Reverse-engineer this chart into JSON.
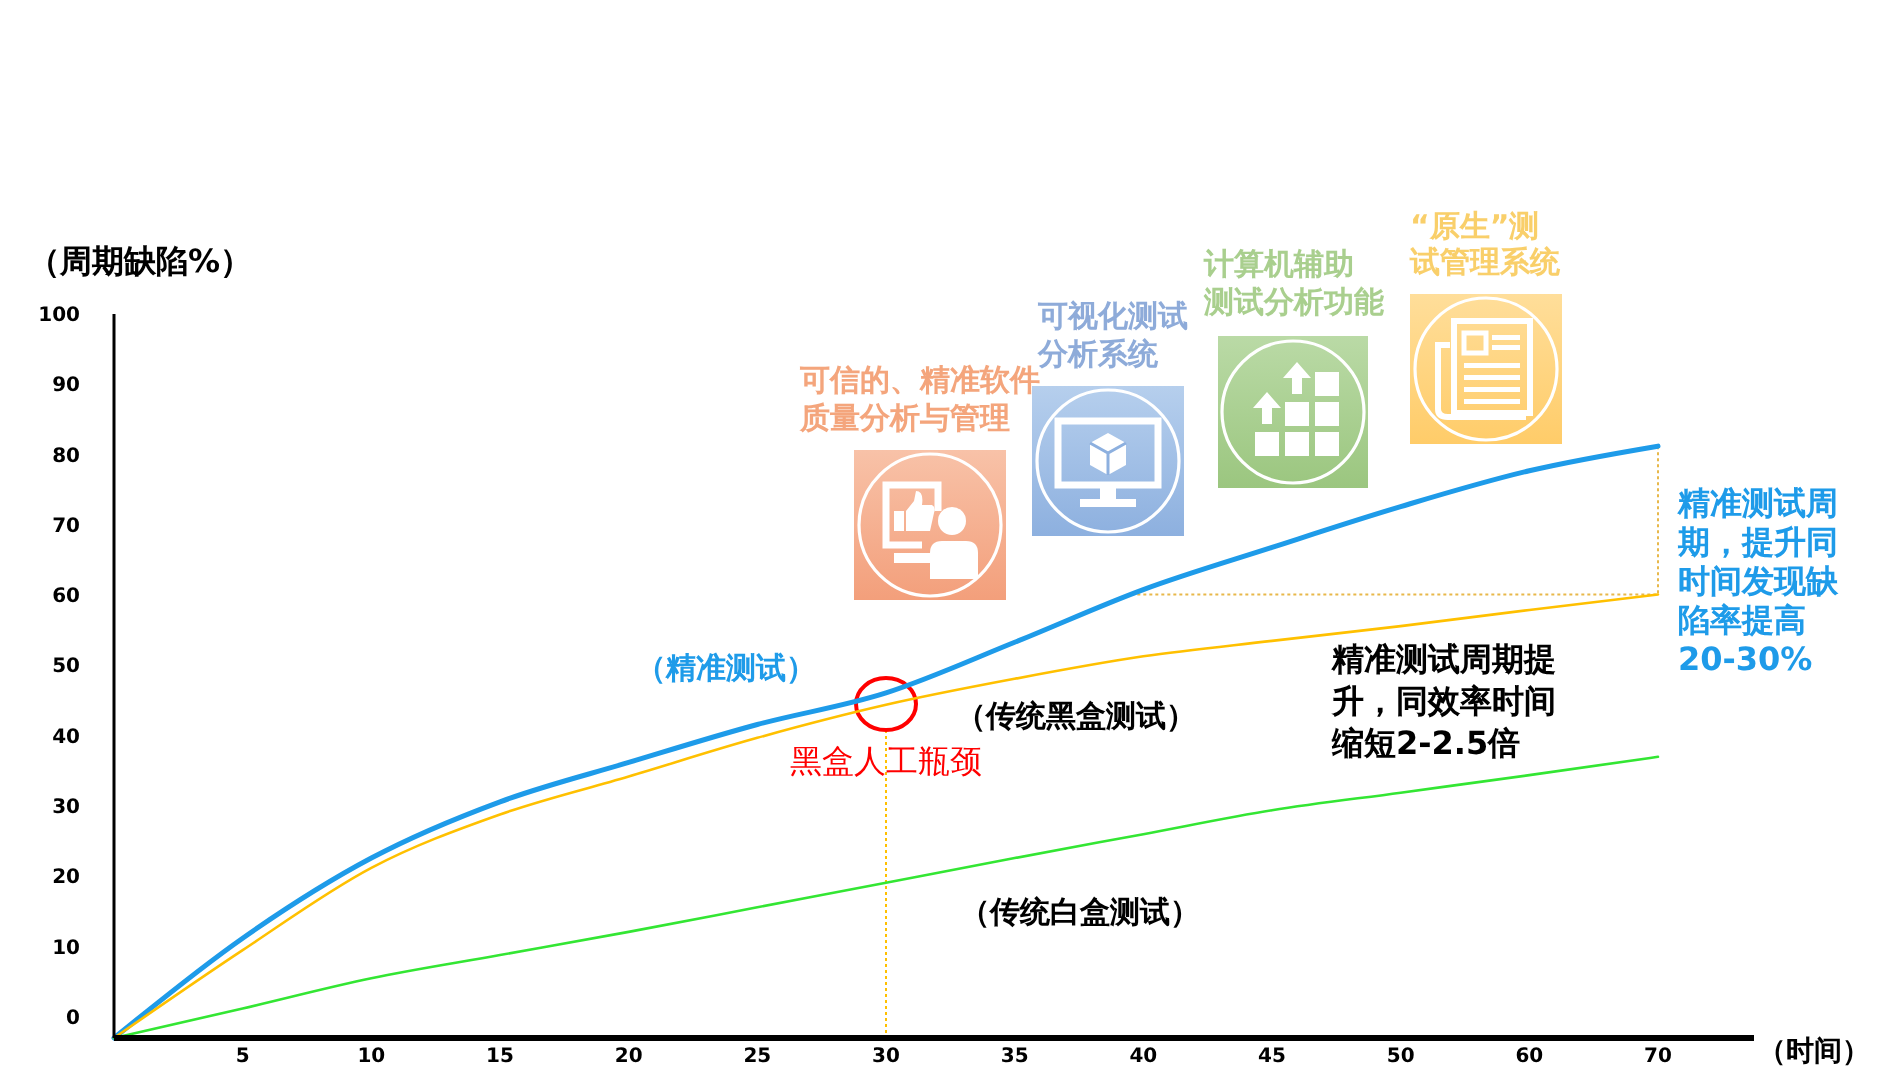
{
  "chart_data": {
    "type": "line",
    "xlabel": "（时间）",
    "ylabel": "（周期缺陷%）",
    "categories": [
      null,
      "5",
      "10",
      "15",
      "20",
      "25",
      "30",
      "35",
      "40",
      "45",
      "50",
      "60",
      "70"
    ],
    "ylim": [
      -3,
      100
    ],
    "yticks": [
      0,
      10,
      20,
      30,
      40,
      50,
      60,
      70,
      80,
      90,
      100
    ],
    "series": [
      {
        "name": "（精准测试）",
        "color": "#1e9be9",
        "values": [
          -3,
          11.2,
          22.6,
          30.6,
          36.2,
          41.6,
          46.1,
          53.3,
          60.8,
          66.8,
          72.6,
          77.7,
          81.2
        ]
      },
      {
        "name": "（传统黑盒测试）",
        "color": "#ffc000",
        "values": [
          -3,
          9.5,
          21.2,
          28.8,
          34.2,
          39.7,
          44.4,
          48.1,
          51.3,
          53.5,
          55.6,
          57.9,
          60.1
        ]
      },
      {
        "name": "（传统白盒测试）",
        "color": "#33e633",
        "values": [
          -3,
          1.2,
          5.5,
          8.8,
          12.1,
          15.6,
          19.1,
          22.6,
          26.0,
          29.4,
          31.9,
          34.4,
          37.0
        ]
      }
    ],
    "annotations": [
      "可信的、精准软件质量分析与管理",
      "可视化测试分析系统",
      "计算机辅助测试分析功能",
      "“原生”测试管理系统",
      {
        "text": "黑盒人工瓶颈",
        "x": "30",
        "y": 44.5
      },
      "精准测试周期提升，同效率时间缩短2-2.5倍",
      "精准测试周期，提升同时间发现缺陷率提高20-30%"
    ]
  }
}
